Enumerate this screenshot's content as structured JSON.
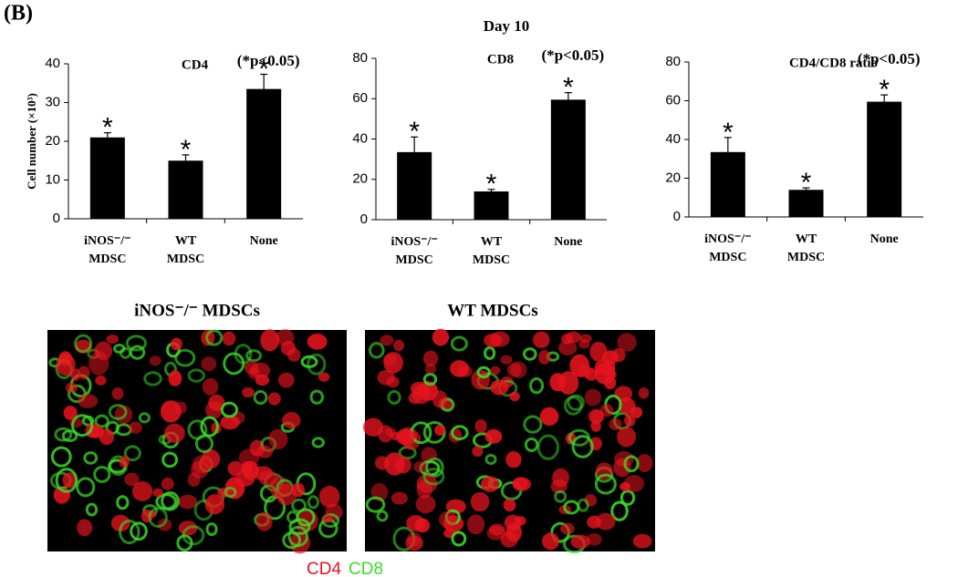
{
  "figure": {
    "panel": "(B)",
    "title": "Day 10"
  },
  "chart_data": [
    {
      "type": "bar",
      "title": "CD4",
      "annotation": "(*p<0.05)",
      "ylabel": "Cell number (×10³)",
      "categories": [
        [
          "iNOS⁻/⁻",
          "MDSC"
        ],
        [
          "WT",
          "MDSC"
        ],
        [
          "None"
        ]
      ],
      "values": [
        21,
        15,
        33.5
      ],
      "errors": [
        1.2,
        1.5,
        3.8
      ],
      "markers": [
        "*",
        "*",
        "*"
      ],
      "color": "#000000",
      "ylim": [
        0,
        40
      ],
      "yticks": [
        0,
        10,
        20,
        30,
        40
      ]
    },
    {
      "type": "bar",
      "title": "CD8",
      "annotation": "(*p<0.05)",
      "categories": [
        [
          "iNOS⁻/⁻",
          "MDSC"
        ],
        [
          "WT",
          "MDSC"
        ],
        [
          "None"
        ]
      ],
      "values": [
        33.5,
        14,
        59.5
      ],
      "errors": [
        7.5,
        1,
        3.5
      ],
      "markers": [
        "*",
        "*",
        "*"
      ],
      "color": "#000000",
      "ylim": [
        0,
        80
      ],
      "yticks": [
        0,
        20,
        40,
        60,
        80
      ]
    },
    {
      "type": "bar",
      "title": "CD4/CD8 ratio",
      "annotation": "(*p<0.05)",
      "categories": [
        [
          "iNOS⁻/⁻",
          "MDSC"
        ],
        [
          "WT",
          "MDSC"
        ],
        [
          "None"
        ]
      ],
      "values": [
        33.5,
        14,
        59.5
      ],
      "errors": [
        7.5,
        1,
        3.5
      ],
      "markers": [
        "*",
        "*",
        "*"
      ],
      "color": "#000000",
      "ylim": [
        0,
        80
      ],
      "yticks": [
        0,
        20,
        40,
        60,
        80
      ]
    }
  ],
  "images": [
    {
      "title": "iNOS⁻/⁻ MDSCs"
    },
    {
      "title": "WT MDSCs"
    }
  ],
  "stain_legend": [
    {
      "name": "CD4",
      "color": "#e8141e"
    },
    {
      "name": "CD8",
      "color": "#3cdc28"
    }
  ]
}
